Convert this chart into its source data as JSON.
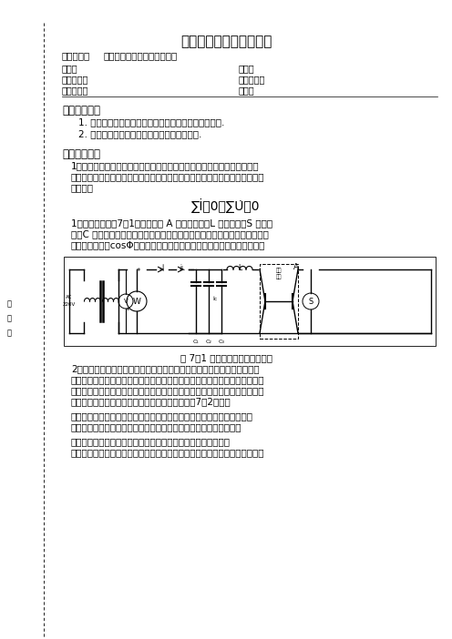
{
  "title": "《电路与模电》实验报告",
  "subject_label": "实验题目：",
  "subject": "正弦稳态交流电路相量的研究",
  "name_label": "姓名：",
  "student_id_label": "学号：",
  "time_label": "实验时间：",
  "location_label": "实验地点：",
  "teacher_label": "指导老师：",
  "class_label": "班级：",
  "section1_title": "一、实验目的",
  "section1_items": [
    "1. 研究正弦稳态交流电路中电压、电流相量之间的关系.",
    "2. 理解改善电路功率因数的意义并掌握其方法."
  ],
  "section2_title": "二、实验原理",
  "section2_para1": "1．在单相正弦交流电路中，用交流电流表测得各支路的电流值，用交流电\n压表测得回路各元件两端的电压值，它们之间的关系满足相量形式的基尔霍夫\n定律，即",
  "formula": "∑İ＝0，∑U̇＝0",
  "section2_para2": "1．实验线路如图7－1所示，图中 A 是日光灯管，L 是镇流器，S 是启辉\n器，C 是一组可由开关切换的补偿电容器，有多种容量可供选择，用以改善电\n路的功率因数（cosΦ值），有关日光灯的工作原理请自行翻阅有关资料．",
  "figure_caption": "图 7－1 单相交流电路的实验线路",
  "section2_para3": "2．普通日光灯由于使用了镇流器，因而是一个感性负载，在感性负载的交\n流电路中，电流相量落后于电压相量，两者在时间有一定的滞后关系，在感性\n负载两端并联电容，可以改变电路总的电流的大小，影响电路的功率因数，若\n以并联电路的电压为参考相量，可画出相量图如图7－2所示．",
  "section2_para4": "由相量图，并联适当的电容，可以减少电路总电流和电压之间的相位角，\n提高电路的功率因数，从而提高电能的利用率以及电能的传输效率．",
  "section2_para5": "实验中使用的功率（功率因数）表来测量电路总的有功功率和功\n率因数，这种表无论是指针式的模拟或者直接读数的数字表，都必须同时采集",
  "bg_color": "#ffffff",
  "text_color": "#000000"
}
